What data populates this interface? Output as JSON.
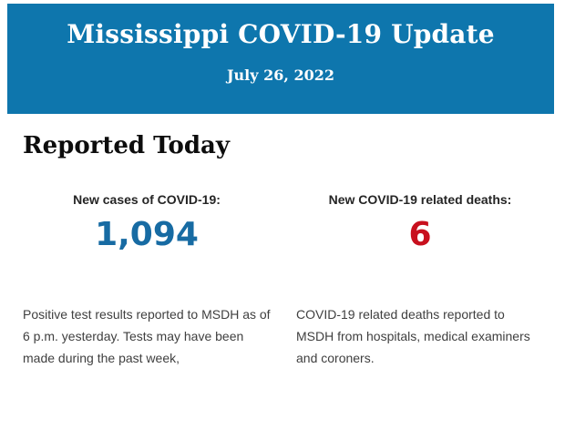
{
  "banner": {
    "title": "Mississippi COVID-19 Update",
    "date": "July 26, 2022",
    "background_color": "#0e76ad",
    "text_color": "#ffffff"
  },
  "section": {
    "heading": "Reported Today"
  },
  "stats": [
    {
      "label": "New cases of COVID-19:",
      "value": "1,094",
      "value_color": "#176ba3",
      "description": "Positive test results reported to MSDH as of 6 p.m. yesterday. Tests may have been made during the past week,"
    },
    {
      "label": "New COVID-19 related deaths:",
      "value": "6",
      "value_color": "#c8101e",
      "description": "COVID-19 related deaths reported to MSDH from hospitals, medical examiners and coroners."
    }
  ]
}
